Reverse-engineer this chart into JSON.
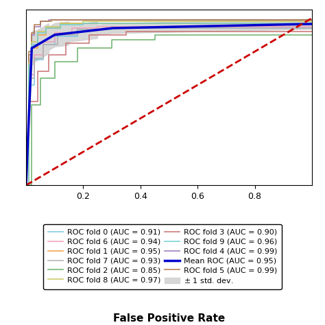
{
  "xlabel": "False Positive Rate",
  "fold_colors": [
    "#7ec8e3",
    "#f0a040",
    "#6ab06a",
    "#c87070",
    "#9878b8",
    "#b07848",
    "#f0a0b8",
    "#b0b0b0",
    "#c8c860",
    "#70d0d0"
  ],
  "fold_aucs": [
    0.91,
    0.95,
    0.85,
    0.9,
    0.99,
    0.99,
    0.94,
    0.93,
    0.97,
    0.96
  ],
  "mean_auc": 0.95,
  "chance_color": "#cc0000",
  "mean_color": "#0000cc",
  "std_fill_color": "#d0d0d0",
  "legend_fontsize": 8.5,
  "axis_fontsize": 11
}
